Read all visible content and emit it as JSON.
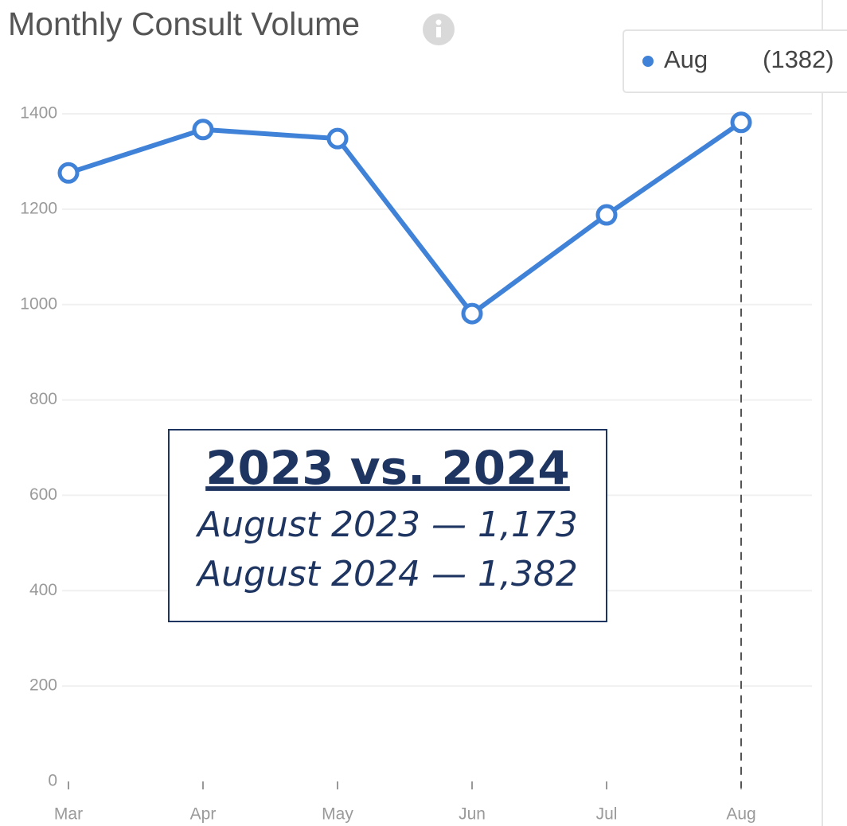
{
  "chart_data": {
    "type": "line",
    "title": "Monthly Consult Volume",
    "categories": [
      "Mar",
      "Apr",
      "May",
      "Jun",
      "Jul",
      "Aug"
    ],
    "series": [
      {
        "name": "Aug",
        "color": "#3f82d8",
        "values": [
          1276,
          1367,
          1348,
          981,
          1188,
          1382
        ]
      }
    ],
    "ylim": [
      0,
      1400
    ],
    "yticks": [
      0,
      200,
      400,
      600,
      800,
      1000,
      1200,
      1400
    ],
    "grid": true,
    "tooltip": {
      "category": "Aug",
      "label": "(1382)"
    },
    "annotation": {
      "title": "2023 vs. 2024",
      "lines": [
        "August 2023 — 1,173",
        "August 2024 — 1,382"
      ]
    }
  }
}
